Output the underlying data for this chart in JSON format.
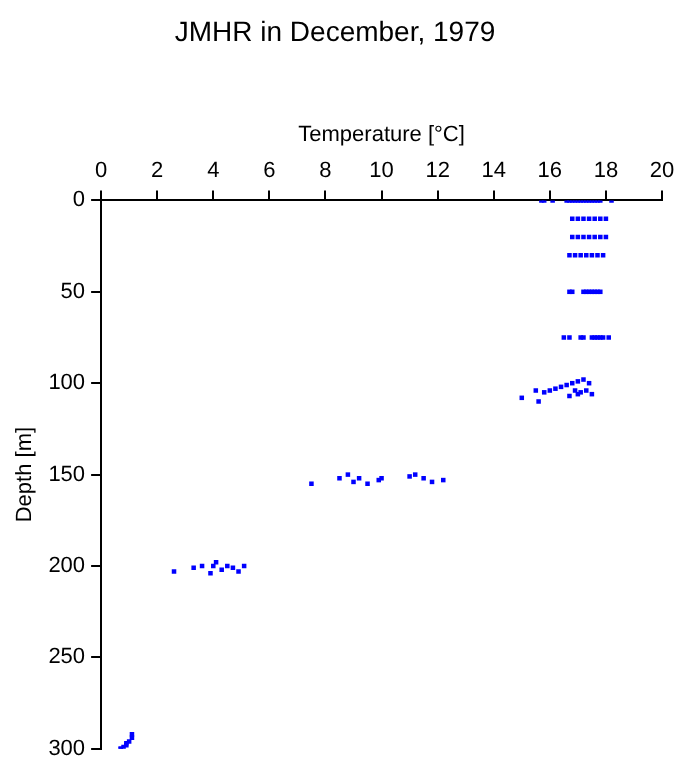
{
  "chart_data": {
    "type": "scatter",
    "title": "JMHR in December, 1979",
    "xlabel": "Temperature [°C]",
    "ylabel": "Depth [m]",
    "x": [
      15.7,
      15.8,
      16.1,
      16.6,
      16.7,
      16.8,
      16.9,
      17.0,
      17.1,
      17.2,
      17.3,
      17.4,
      17.5,
      17.6,
      17.7,
      17.8,
      18.2,
      16.8,
      17.0,
      17.2,
      17.4,
      17.6,
      17.8,
      18.0,
      16.8,
      17.0,
      17.2,
      17.4,
      17.6,
      17.8,
      18.0,
      16.7,
      16.9,
      17.1,
      17.3,
      17.5,
      17.7,
      17.9,
      16.7,
      16.8,
      17.2,
      17.3,
      17.4,
      17.5,
      17.6,
      17.7,
      17.8,
      16.5,
      16.7,
      17.1,
      17.2,
      17.5,
      17.6,
      17.7,
      17.8,
      17.9,
      18.1,
      15.0,
      15.5,
      15.6,
      15.8,
      16.0,
      16.2,
      16.4,
      16.6,
      16.8,
      16.9,
      17.0,
      17.1,
      17.2,
      17.3,
      17.4,
      17.5,
      16.7,
      17.0,
      7.5,
      8.5,
      8.8,
      9.0,
      9.2,
      9.5,
      9.9,
      10.0,
      11.0,
      11.2,
      11.5,
      11.8,
      12.2,
      2.6,
      3.3,
      3.6,
      3.9,
      4.0,
      4.1,
      4.3,
      4.5,
      4.7,
      4.9,
      5.1,
      0.7,
      0.8,
      0.9,
      1.0,
      1.1,
      0.7,
      0.9,
      1.1
    ],
    "values": [
      0,
      0,
      0,
      0,
      0,
      0,
      0,
      0,
      0,
      0,
      0,
      0,
      0,
      0,
      0,
      0,
      0,
      10,
      10,
      10,
      10,
      10,
      10,
      10,
      20,
      20,
      20,
      20,
      20,
      20,
      20,
      30,
      30,
      30,
      30,
      30,
      30,
      30,
      50,
      50,
      50,
      50,
      50,
      50,
      50,
      50,
      50,
      75,
      75,
      75,
      75,
      75,
      75,
      75,
      75,
      75,
      75,
      108,
      104,
      110,
      105,
      104,
      103,
      102,
      101,
      100,
      104,
      99,
      105,
      98,
      104,
      100,
      106,
      107,
      106,
      155,
      152,
      150,
      154,
      152,
      155,
      153,
      152,
      151,
      150,
      152,
      154,
      153,
      203,
      201,
      200,
      204,
      200,
      198,
      202,
      200,
      201,
      203,
      200,
      300,
      299,
      297,
      296,
      294,
      300,
      298,
      292
    ],
    "color": "#0000ff",
    "marker": "square",
    "xlim": [
      0,
      20
    ],
    "xticks": [
      0,
      2,
      4,
      6,
      8,
      10,
      12,
      14,
      16,
      18,
      20
    ],
    "ylim": [
      300,
      0
    ],
    "yticks": [
      0,
      50,
      100,
      150,
      200,
      250,
      300
    ],
    "grid": false,
    "legend": false
  }
}
